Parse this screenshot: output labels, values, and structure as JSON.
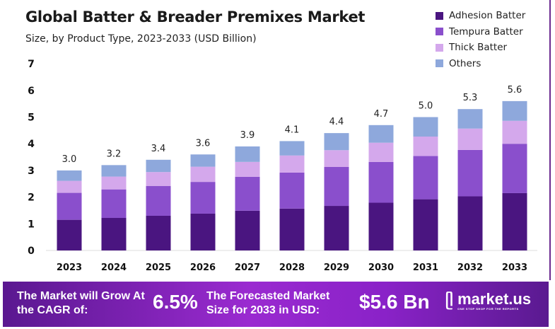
{
  "chart_data": {
    "type": "bar",
    "stacked": true,
    "title": "Global Batter & Breader Premixes Market",
    "subtitle": "Size, by Product Type, 2023-2033 (USD Billion)",
    "categories": [
      "2023",
      "2024",
      "2025",
      "2026",
      "2027",
      "2028",
      "2029",
      "2030",
      "2031",
      "2032",
      "2033"
    ],
    "series": [
      {
        "name": "Adhesion Batter",
        "color": "#4a1580",
        "values": [
          1.15,
          1.22,
          1.3,
          1.38,
          1.49,
          1.57,
          1.67,
          1.79,
          1.92,
          2.03,
          2.15
        ]
      },
      {
        "name": "Tempura Batter",
        "color": "#8a4fcc",
        "values": [
          1.01,
          1.07,
          1.12,
          1.19,
          1.27,
          1.35,
          1.46,
          1.53,
          1.62,
          1.74,
          1.85
        ]
      },
      {
        "name": "Thick Batter",
        "color": "#d4a8ec",
        "values": [
          0.45,
          0.48,
          0.52,
          0.57,
          0.56,
          0.64,
          0.63,
          0.72,
          0.73,
          0.8,
          0.86
        ]
      },
      {
        "name": "Others",
        "color": "#8ea8dc",
        "values": [
          0.39,
          0.43,
          0.46,
          0.46,
          0.58,
          0.54,
          0.64,
          0.66,
          0.73,
          0.73,
          0.74
        ]
      }
    ],
    "totals": [
      "3.0",
      "3.2",
      "3.4",
      "3.6",
      "3.9",
      "4.1",
      "4.4",
      "4.7",
      "5.0",
      "5.3",
      "5.6"
    ],
    "yticks": [
      "0",
      "1",
      "2",
      "3",
      "4",
      "5",
      "6",
      "7"
    ],
    "ylim": [
      0,
      7
    ],
    "grid": false,
    "legend": "top-right"
  },
  "banner": {
    "cagr_text": "The Market will Grow At the CAGR of:",
    "cagr_value": "6.5%",
    "forecast_text": "The Forecasted Market Size for 2033 in USD:",
    "forecast_value": "$5.6 Bn",
    "logo_name": "market.us",
    "logo_tagline": "ONE STOP SHOP FOR THE REPORTS"
  }
}
